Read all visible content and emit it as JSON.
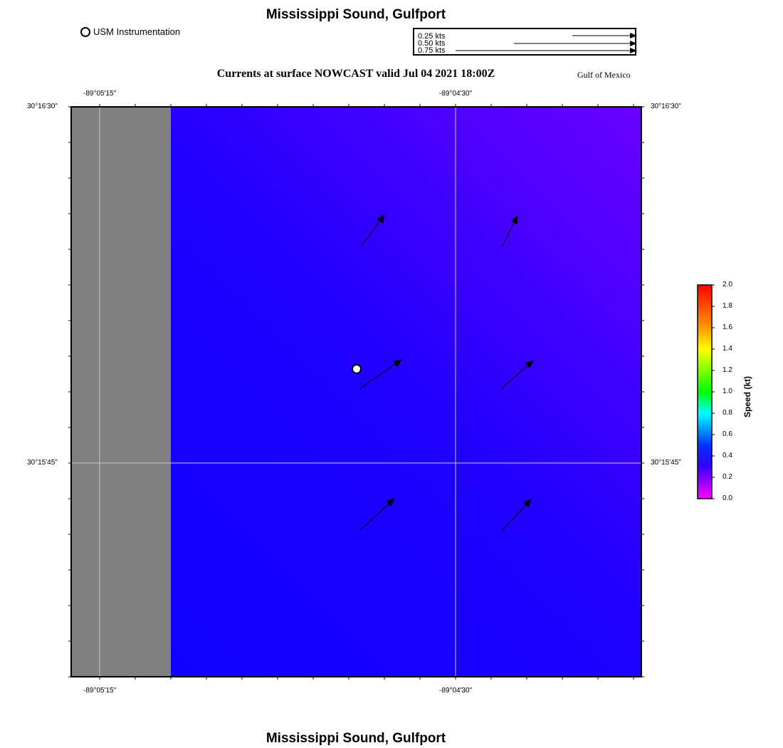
{
  "header": {
    "title": "Mississippi Sound, Gulfport",
    "footer_title": "Mississippi Sound, Gulfport"
  },
  "legend": {
    "station_label": "USM Instrumentation",
    "reference_vectors": [
      {
        "label": "0.25 kts",
        "speed_kts": 0.25
      },
      {
        "label": "0.50 kts",
        "speed_kts": 0.5
      },
      {
        "label": "0.75 kts",
        "speed_kts": 0.75
      }
    ]
  },
  "map": {
    "title": "Currents at surface NOWCAST valid Jul 04 2021 18:00Z",
    "region": "Gulf of Mexico",
    "lon_labels_top": [
      "-89°05'15\"",
      "-89°04'30\""
    ],
    "lon_labels_bottom": [
      "-89°05'15\"",
      "-89°04'30\""
    ],
    "lat_labels_left": [
      "30°16'30\"",
      "30°15'45\""
    ],
    "lat_labels_right": [
      "30°16'30\"",
      "30°15'45\""
    ],
    "land_color": "#808080",
    "water_colors": [
      "#0a00ff",
      "#2000ff",
      "#6a00ff"
    ],
    "current_vectors": [
      {
        "id": "v1",
        "speed_kts": 0.45,
        "direction_deg": 35
      },
      {
        "id": "v2",
        "speed_kts": 0.4,
        "direction_deg": 25
      },
      {
        "id": "v3",
        "speed_kts": 0.55,
        "direction_deg": 57
      },
      {
        "id": "v4",
        "speed_kts": 0.52,
        "direction_deg": 45
      },
      {
        "id": "v5",
        "speed_kts": 0.55,
        "direction_deg": 48
      },
      {
        "id": "v6",
        "speed_kts": 0.52,
        "direction_deg": 45
      }
    ]
  },
  "colorbar": {
    "title": "Speed (kt)",
    "ticks": [
      "2.0",
      "1.8",
      "1.6",
      "1.4",
      "1.2",
      "1.0",
      "0.8",
      "0.6",
      "0.4",
      "0.2",
      "0.0"
    ],
    "range": [
      0.0,
      2.0
    ]
  }
}
